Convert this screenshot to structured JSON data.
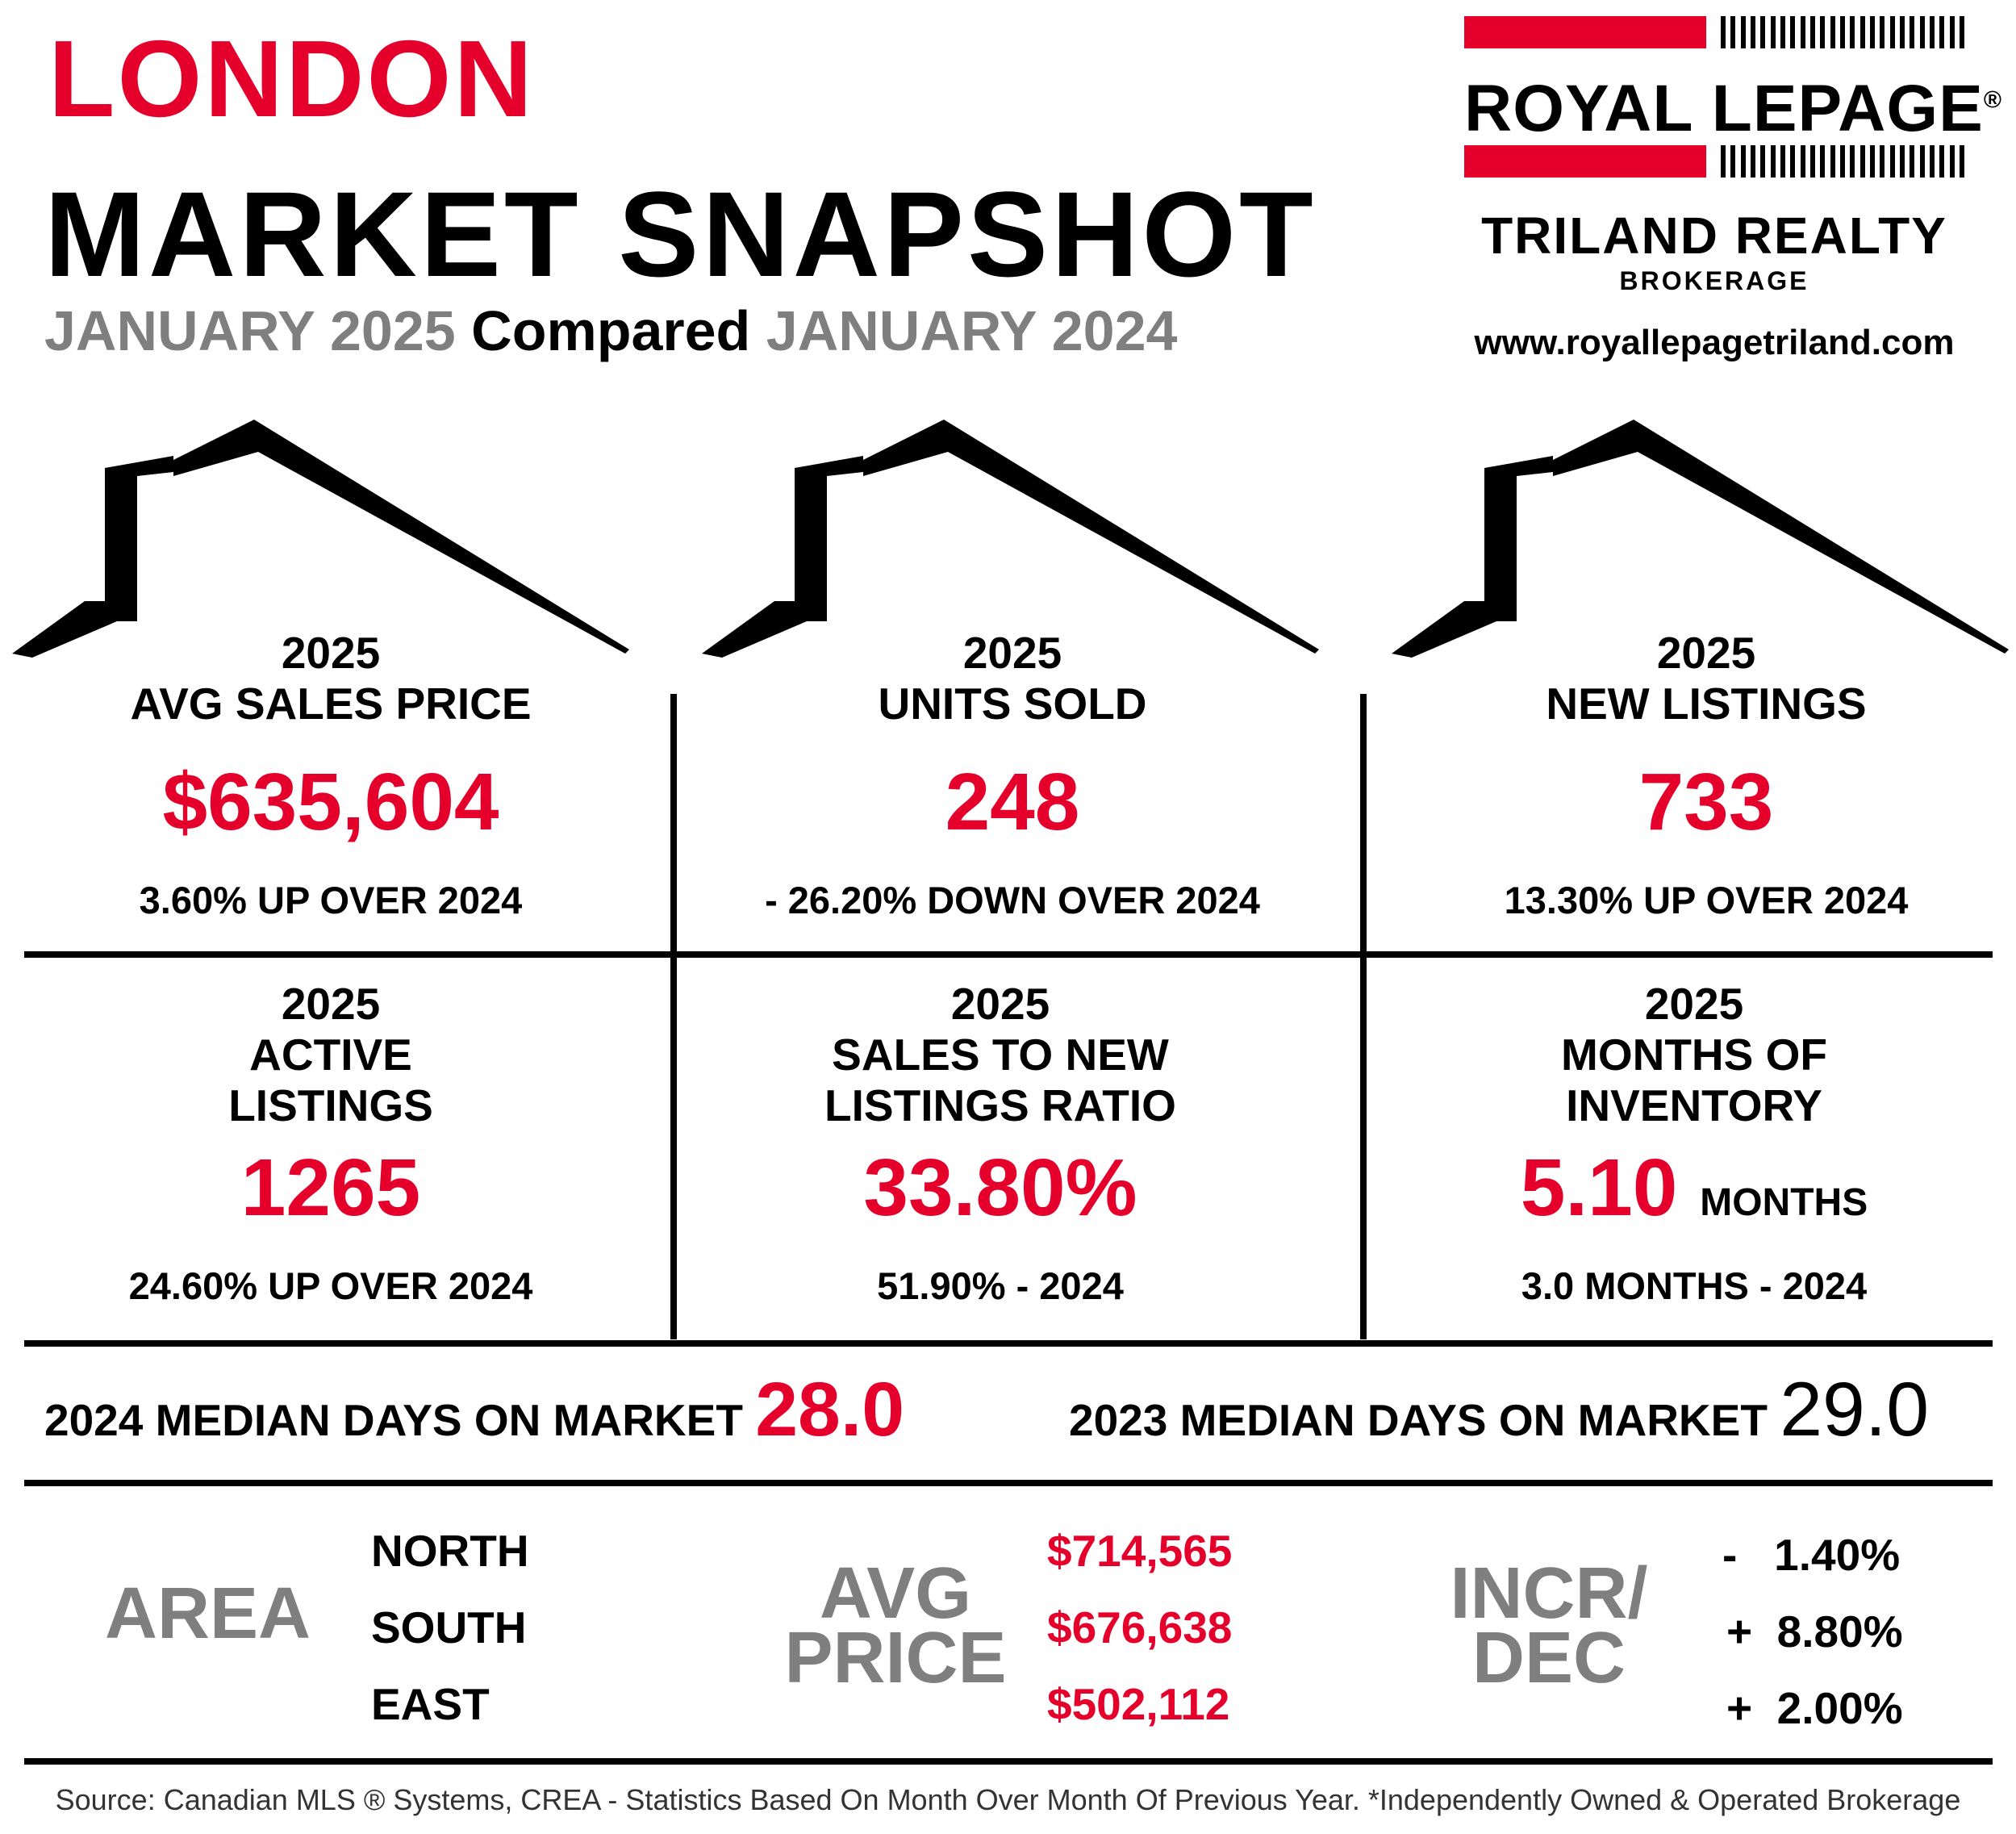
{
  "header": {
    "city": "LONDON",
    "title": "MARKET SNAPSHOT",
    "period_current": "JANUARY 2025",
    "compared_word": "Compared",
    "period_previous": "JANUARY 2024"
  },
  "brand": {
    "wordmark": "ROYAL LEPAGE",
    "registered": "®",
    "office": "TRILAND REALTY",
    "brokerage": "BROKERAGE",
    "website": "www.royallepagetriland.com",
    "accent_color": "#e4002b"
  },
  "stats": [
    {
      "year": "2025",
      "label_lines": [
        "AVG SALES PRICE"
      ],
      "value": "$635,604",
      "unit": "",
      "footnote": "3.60% UP OVER 2024"
    },
    {
      "year": "2025",
      "label_lines": [
        "UNITS SOLD"
      ],
      "value": "248",
      "unit": "",
      "footnote": "- 26.20% DOWN OVER 2024"
    },
    {
      "year": "2025",
      "label_lines": [
        "NEW LISTINGS"
      ],
      "value": "733",
      "unit": "",
      "footnote": "13.30% UP OVER 2024"
    },
    {
      "year": "2025",
      "label_lines": [
        "ACTIVE",
        "LISTINGS"
      ],
      "value": "1265",
      "unit": "",
      "footnote": "24.60% UP OVER 2024"
    },
    {
      "year": "2025",
      "label_lines": [
        "SALES TO NEW",
        "LISTINGS RATIO"
      ],
      "value": "33.80%",
      "unit": "",
      "footnote": "51.90% - 2024"
    },
    {
      "year": "2025",
      "label_lines": [
        "MONTHS OF",
        "INVENTORY"
      ],
      "value": "5.10",
      "unit": "MONTHS",
      "footnote": "3.0 MONTHS - 2024"
    }
  ],
  "days_on_market": {
    "current_label": "2024 MEDIAN DAYS ON MARKET",
    "current_value": "28.0",
    "previous_label": "2023 MEDIAN DAYS ON MARKET",
    "previous_value": "29.0"
  },
  "areas": {
    "area_heading": "AREA",
    "price_heading_lines": [
      "AVG",
      "PRICE"
    ],
    "change_heading_lines": [
      "INCR/",
      "DEC"
    ],
    "rows": [
      {
        "name": "NORTH",
        "avg_price": "$714,565",
        "change": "-   1.40%"
      },
      {
        "name": "SOUTH",
        "avg_price": "$676,638",
        "change": "+  8.80%"
      },
      {
        "name": "EAST",
        "avg_price": "$502,112",
        "change": "+  2.00%"
      }
    ]
  },
  "footer": {
    "source": "Source: Canadian MLS ® Systems, CREA - Statistics Based On Month Over Month Of Previous Year.  *Independently Owned & Operated Brokerage"
  }
}
